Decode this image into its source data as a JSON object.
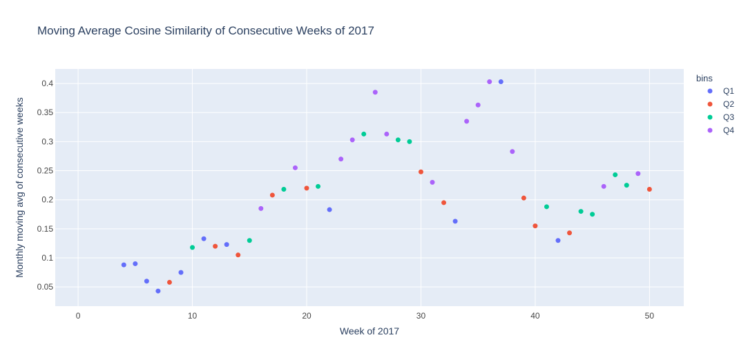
{
  "chart_data": {
    "type": "scatter",
    "title": "Moving Average Cosine Similarity of Consecutive Weeks of 2017",
    "xlabel": "Week of 2017",
    "ylabel": "Monthly moving avg of consecutive weeks",
    "xlim": [
      -2,
      53
    ],
    "ylim": [
      0.017,
      0.425
    ],
    "x_ticks": [
      0,
      10,
      20,
      30,
      40,
      50
    ],
    "x_tick_labels": [
      "0",
      "10",
      "20",
      "30",
      "40",
      "50"
    ],
    "y_ticks": [
      0.05,
      0.1,
      0.15,
      0.2,
      0.25,
      0.3,
      0.35,
      0.4
    ],
    "y_tick_labels": [
      "0.05",
      "0.1",
      "0.15",
      "0.2",
      "0.25",
      "0.3",
      "0.35",
      "0.4"
    ],
    "grid": true,
    "legend": {
      "title": "bins",
      "placement": "right"
    },
    "series": [
      {
        "name": "Q1",
        "color": "#636efa",
        "x": [
          4,
          5,
          6,
          7,
          9,
          11,
          13,
          22,
          33,
          37,
          42
        ],
        "y": [
          0.088,
          0.09,
          0.06,
          0.043,
          0.075,
          0.133,
          0.123,
          0.183,
          0.163,
          0.403,
          0.13
        ]
      },
      {
        "name": "Q2",
        "color": "#ef553b",
        "x": [
          8,
          12,
          14,
          17,
          20,
          30,
          32,
          39,
          40,
          43,
          50
        ],
        "y": [
          0.058,
          0.12,
          0.105,
          0.208,
          0.22,
          0.248,
          0.195,
          0.203,
          0.155,
          0.143,
          0.218
        ]
      },
      {
        "name": "Q3",
        "color": "#00cc96",
        "x": [
          10,
          15,
          18,
          21,
          25,
          28,
          29,
          41,
          44,
          45,
          47,
          48
        ],
        "y": [
          0.118,
          0.13,
          0.218,
          0.223,
          0.313,
          0.303,
          0.3,
          0.188,
          0.18,
          0.175,
          0.243,
          0.225
        ]
      },
      {
        "name": "Q4",
        "color": "#ab63fa",
        "x": [
          16,
          19,
          23,
          24,
          26,
          27,
          31,
          34,
          35,
          36,
          38,
          46,
          49
        ],
        "y": [
          0.185,
          0.255,
          0.27,
          0.303,
          0.385,
          0.313,
          0.23,
          0.335,
          0.363,
          0.403,
          0.283,
          0.223,
          0.245
        ]
      }
    ]
  }
}
